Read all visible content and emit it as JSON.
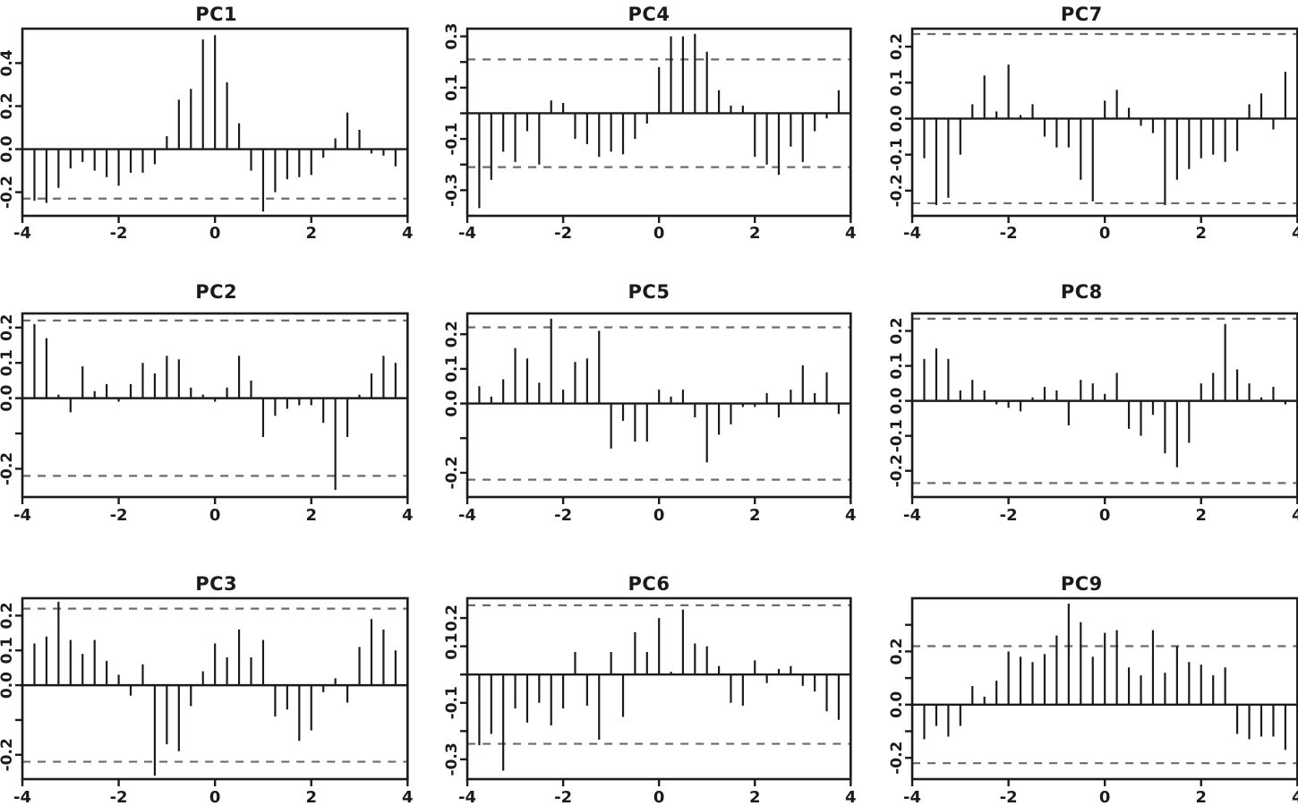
{
  "colors": {
    "bar": "#1b1b1b",
    "axis": "#1b1b1b",
    "tick_label": "#1b1b1b",
    "threshold_dash": "#6b6b6b",
    "background": "#ffffff"
  },
  "chart_data": [
    {
      "type": "bar",
      "title": "PC1",
      "grid_position": {
        "row": 1,
        "col": 1
      },
      "x_start": -3.75,
      "x_step": 0.25,
      "xlim": [
        -4,
        4
      ],
      "ylim": [
        -0.31,
        0.56
      ],
      "xticks": [
        -4,
        -2,
        0,
        2,
        4
      ],
      "xtick_labels": [
        "-4",
        "-2",
        "0",
        "2",
        "4"
      ],
      "yticks": [
        0.4,
        0.2,
        0.0,
        -0.2
      ],
      "ytick_labels": [
        "0.4",
        "0.2",
        "0.0",
        "-0.2"
      ],
      "thresholds": [
        -0.23
      ],
      "values": [
        -0.24,
        -0.25,
        -0.18,
        -0.09,
        -0.06,
        -0.1,
        -0.13,
        -0.17,
        -0.11,
        -0.11,
        -0.07,
        0.06,
        0.23,
        0.28,
        0.51,
        0.53,
        0.31,
        0.12,
        -0.1,
        -0.29,
        -0.2,
        -0.14,
        -0.13,
        -0.12,
        -0.04,
        0.05,
        0.17,
        0.09,
        -0.02,
        -0.03,
        -0.08
      ]
    },
    {
      "type": "bar",
      "title": "PC4",
      "grid_position": {
        "row": 1,
        "col": 2
      },
      "x_start": -3.75,
      "x_step": 0.25,
      "xlim": [
        -4,
        4
      ],
      "ylim": [
        -0.4,
        0.33
      ],
      "xticks": [
        -4,
        -2,
        0,
        2,
        4
      ],
      "xtick_labels": [
        "-4",
        "-2",
        "0",
        "2",
        "4"
      ],
      "yticks": [
        0.3,
        0.2,
        0.1,
        0.0,
        -0.1,
        -0.2,
        -0.3
      ],
      "ytick_labels": [
        "0.3",
        "",
        "0.1",
        "",
        "-0.1",
        "",
        "-0.3"
      ],
      "thresholds": [
        0.21,
        -0.21
      ],
      "values": [
        -0.37,
        -0.26,
        -0.15,
        -0.19,
        -0.07,
        -0.2,
        0.05,
        0.04,
        -0.1,
        -0.12,
        -0.17,
        -0.15,
        -0.16,
        -0.1,
        -0.04,
        0.18,
        0.3,
        0.3,
        0.31,
        0.24,
        0.09,
        0.03,
        0.03,
        -0.17,
        -0.2,
        -0.24,
        -0.13,
        -0.19,
        -0.07,
        -0.02,
        0.09
      ]
    },
    {
      "type": "bar",
      "title": "PC7",
      "grid_position": {
        "row": 1,
        "col": 3
      },
      "x_start": -3.75,
      "x_step": 0.25,
      "xlim": [
        -4,
        4
      ],
      "ylim": [
        -0.27,
        0.25
      ],
      "xticks": [
        -4,
        -2,
        0,
        2,
        4
      ],
      "xtick_labels": [
        "-4",
        "-2",
        "0",
        "2",
        "4"
      ],
      "yticks": [
        0.2,
        0.1,
        0.0,
        -0.1,
        -0.2
      ],
      "ytick_labels": [
        "0.2",
        "0.1",
        "0.0",
        "-0.1",
        "-0.2"
      ],
      "thresholds": [
        0.235,
        -0.235
      ],
      "values": [
        -0.11,
        -0.24,
        -0.22,
        -0.1,
        0.04,
        0.12,
        0.02,
        0.15,
        0.01,
        0.04,
        -0.05,
        -0.08,
        -0.08,
        -0.17,
        -0.23,
        0.05,
        0.08,
        0.03,
        -0.02,
        -0.04,
        -0.24,
        -0.17,
        -0.14,
        -0.11,
        -0.1,
        -0.12,
        -0.09,
        0.04,
        0.07,
        -0.03,
        0.13
      ]
    },
    {
      "type": "bar",
      "title": "PC2",
      "grid_position": {
        "row": 2,
        "col": 1
      },
      "x_start": -3.75,
      "x_step": 0.25,
      "xlim": [
        -4,
        4
      ],
      "ylim": [
        -0.28,
        0.24
      ],
      "xticks": [
        -4,
        -2,
        0,
        2,
        4
      ],
      "xtick_labels": [
        "-4",
        "-2",
        "0",
        "2",
        "4"
      ],
      "yticks": [
        0.2,
        0.1,
        0.0,
        -0.1,
        -0.2
      ],
      "ytick_labels": [
        "0.2",
        "0.1",
        "0.0",
        "",
        "-0.2"
      ],
      "thresholds": [
        0.22,
        -0.22
      ],
      "values": [
        0.21,
        0.17,
        0.01,
        -0.04,
        0.09,
        0.02,
        0.04,
        -0.01,
        0.04,
        0.1,
        0.07,
        0.12,
        0.11,
        0.03,
        0.01,
        -0.01,
        0.03,
        0.12,
        0.05,
        -0.11,
        -0.05,
        -0.03,
        -0.02,
        -0.02,
        -0.07,
        -0.26,
        -0.11,
        0.01,
        0.07,
        0.12,
        0.1
      ]
    },
    {
      "type": "bar",
      "title": "PC5",
      "grid_position": {
        "row": 2,
        "col": 2
      },
      "x_start": -3.75,
      "x_step": 0.25,
      "xlim": [
        -4,
        4
      ],
      "ylim": [
        -0.27,
        0.26
      ],
      "xticks": [
        -4,
        -2,
        0,
        2,
        4
      ],
      "xtick_labels": [
        "-4",
        "-2",
        "0",
        "2",
        "4"
      ],
      "yticks": [
        0.2,
        0.1,
        0.0,
        -0.1,
        -0.2
      ],
      "ytick_labels": [
        "0.2",
        "0.1",
        "0.0",
        "",
        "-0.2"
      ],
      "thresholds": [
        0.22,
        -0.22
      ],
      "values": [
        0.05,
        0.02,
        0.07,
        0.16,
        0.13,
        0.06,
        0.245,
        0.04,
        0.12,
        0.13,
        0.21,
        -0.13,
        -0.05,
        -0.11,
        -0.11,
        0.04,
        0.02,
        0.04,
        -0.04,
        -0.17,
        -0.09,
        -0.06,
        -0.01,
        -0.01,
        0.03,
        -0.04,
        0.04,
        0.11,
        0.03,
        0.09,
        -0.03
      ]
    },
    {
      "type": "bar",
      "title": "PC8",
      "grid_position": {
        "row": 2,
        "col": 3
      },
      "x_start": -3.75,
      "x_step": 0.25,
      "xlim": [
        -4,
        4
      ],
      "ylim": [
        -0.275,
        0.25
      ],
      "xticks": [
        -4,
        -2,
        0,
        2,
        4
      ],
      "xtick_labels": [
        "-4",
        "-2",
        "0",
        "2",
        "4"
      ],
      "yticks": [
        0.2,
        0.1,
        0.0,
        -0.1,
        -0.2
      ],
      "ytick_labels": [
        "0.2",
        "0.1",
        "0.0",
        "-0.1",
        "-0.2"
      ],
      "thresholds": [
        0.235,
        -0.235
      ],
      "values": [
        0.12,
        0.15,
        0.12,
        0.03,
        0.06,
        0.03,
        -0.01,
        -0.02,
        -0.03,
        0.01,
        0.04,
        0.03,
        -0.07,
        0.06,
        0.05,
        0.02,
        0.08,
        -0.08,
        -0.1,
        -0.04,
        -0.15,
        -0.19,
        -0.12,
        0.05,
        0.08,
        0.22,
        0.09,
        0.05,
        0.01,
        0.04,
        -0.01
      ]
    },
    {
      "type": "bar",
      "title": "PC3",
      "grid_position": {
        "row": 3,
        "col": 1
      },
      "x_start": -3.75,
      "x_step": 0.25,
      "xlim": [
        -4,
        4
      ],
      "ylim": [
        -0.27,
        0.25
      ],
      "xticks": [
        -4,
        -2,
        0,
        2,
        4
      ],
      "xtick_labels": [
        "-4",
        "-2",
        "0",
        "2",
        "4"
      ],
      "yticks": [
        0.2,
        0.1,
        0.0,
        -0.1,
        -0.2
      ],
      "ytick_labels": [
        "0.2",
        "0.1",
        "0.0",
        "",
        "-0.2"
      ],
      "thresholds": [
        0.22,
        -0.22
      ],
      "values": [
        0.12,
        0.14,
        0.24,
        0.13,
        0.09,
        0.13,
        0.07,
        0.03,
        -0.03,
        0.06,
        -0.26,
        -0.17,
        -0.19,
        -0.06,
        0.04,
        0.12,
        0.08,
        0.16,
        0.08,
        0.13,
        -0.09,
        -0.07,
        -0.16,
        -0.13,
        -0.02,
        0.02,
        -0.05,
        0.11,
        0.19,
        0.16,
        0.1
      ]
    },
    {
      "type": "bar",
      "title": "PC6",
      "grid_position": {
        "row": 3,
        "col": 2
      },
      "x_start": -3.75,
      "x_step": 0.25,
      "xlim": [
        -4,
        4
      ],
      "ylim": [
        -0.37,
        0.27
      ],
      "xticks": [
        -4,
        -2,
        0,
        2,
        4
      ],
      "xtick_labels": [
        "-4",
        "-2",
        "0",
        "2",
        "4"
      ],
      "yticks": [
        0.2,
        0.1,
        0.0,
        -0.1,
        -0.2,
        -0.3
      ],
      "ytick_labels": [
        "0.2",
        "0.1",
        "",
        "-0.1",
        "",
        "-0.3"
      ],
      "thresholds": [
        0.245,
        -0.245
      ],
      "values": [
        -0.25,
        -0.21,
        -0.34,
        -0.12,
        -0.17,
        -0.1,
        -0.18,
        -0.12,
        0.08,
        -0.11,
        -0.23,
        0.08,
        -0.15,
        0.15,
        0.08,
        0.2,
        0.01,
        0.23,
        0.11,
        0.1,
        0.03,
        -0.1,
        -0.11,
        0.05,
        -0.03,
        0.02,
        0.03,
        -0.04,
        -0.06,
        -0.13,
        -0.16
      ]
    },
    {
      "type": "bar",
      "title": "PC9",
      "grid_position": {
        "row": 3,
        "col": 3
      },
      "x_start": -3.75,
      "x_step": 0.25,
      "xlim": [
        -4,
        4
      ],
      "ylim": [
        -0.28,
        0.4
      ],
      "xticks": [
        -4,
        -2,
        0,
        2,
        4
      ],
      "xtick_labels": [
        "-4",
        "-2",
        "0",
        "2",
        "4"
      ],
      "yticks": [
        0.3,
        0.2,
        0.1,
        0.0,
        -0.1,
        -0.2
      ],
      "ytick_labels": [
        "",
        "0.2",
        "",
        "0.0",
        "",
        "-0.2"
      ],
      "thresholds": [
        0.22,
        -0.22
      ],
      "values": [
        -0.13,
        -0.08,
        -0.12,
        -0.08,
        0.07,
        0.03,
        0.09,
        0.2,
        0.18,
        0.16,
        0.19,
        0.26,
        0.38,
        0.31,
        0.18,
        0.27,
        0.28,
        0.14,
        0.11,
        0.28,
        0.12,
        0.22,
        0.16,
        0.15,
        0.11,
        0.14,
        -0.11,
        -0.13,
        -0.12,
        -0.12,
        -0.17
      ]
    }
  ]
}
